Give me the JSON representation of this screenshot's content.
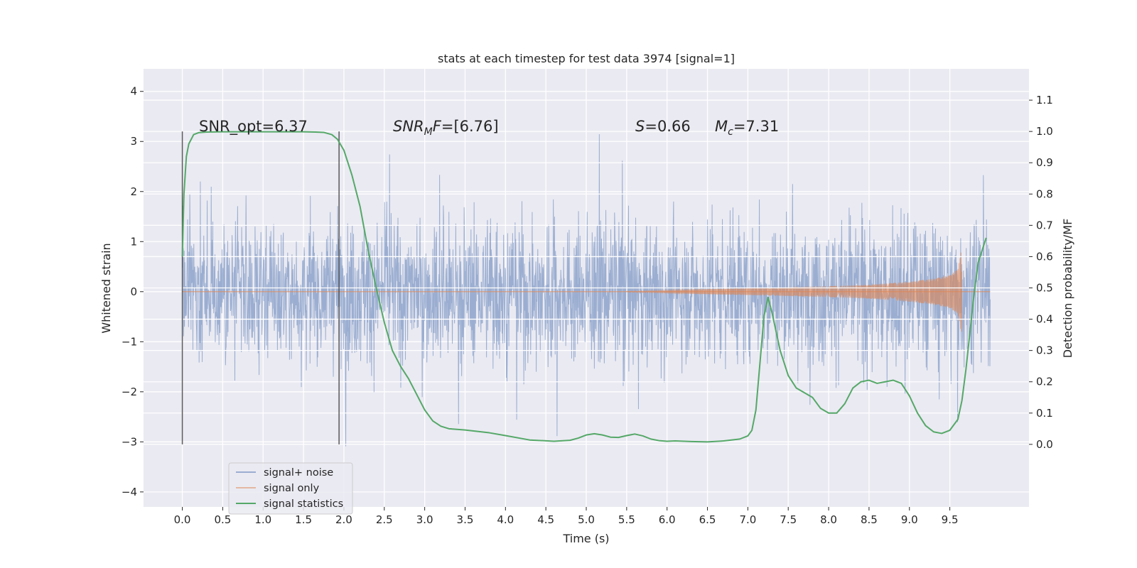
{
  "chart_data": {
    "type": "line",
    "title": "stats at each timestep for test data 3974 [signal=1]",
    "xlabel": "Time (s)",
    "ylabel_left": "Whitened strain",
    "ylabel_right": "Detection probability/MF",
    "xlim": [
      -0.48,
      10.48
    ],
    "ylim_left": [
      -4.3,
      4.45
    ],
    "ylim_right": [
      -0.2,
      1.2
    ],
    "x_ticks": [
      "0.0",
      "0.5",
      "1.0",
      "1.5",
      "2.0",
      "2.5",
      "3.0",
      "3.5",
      "4.0",
      "4.5",
      "5.0",
      "5.5",
      "6.0",
      "6.5",
      "7.0",
      "7.5",
      "8.0",
      "8.5",
      "9.0",
      "9.5"
    ],
    "y_ticks_left": [
      "−4",
      "−3",
      "−2",
      "−1",
      "0",
      "1",
      "2",
      "3",
      "4"
    ],
    "y_ticks_right": [
      "0.0",
      "0.1",
      "0.2",
      "0.3",
      "0.4",
      "0.5",
      "0.6",
      "0.7",
      "0.8",
      "0.9",
      "1.0",
      "1.1"
    ],
    "grid": true,
    "legend": {
      "placement": "lower-left",
      "entries": [
        "signal+ noise",
        "signal only",
        "signal statistics"
      ]
    },
    "annotations": {
      "snr_opt": "SNR_opt=6.37",
      "snr_mf": "[6.76]",
      "s_value": "=0.66",
      "mc_value": "=7.31"
    },
    "vertical_markers_x": [
      0.0,
      1.94
    ],
    "series": [
      {
        "name": "signal+ noise",
        "color": "#4c72b0",
        "axis": "left",
        "x_range": [
          0.0,
          10.0
        ],
        "envelope_y": [
          -4.0,
          4.05
        ]
      },
      {
        "name": "signal only",
        "color": "#dd8452",
        "axis": "left",
        "x": [
          5.5,
          6.0,
          6.5,
          7.0,
          7.5,
          8.0,
          8.5,
          9.0,
          9.3,
          9.5,
          9.6,
          9.65
        ],
        "amplitude": [
          0.01,
          0.03,
          0.05,
          0.07,
          0.09,
          0.11,
          0.14,
          0.2,
          0.26,
          0.33,
          0.45,
          0.9
        ]
      },
      {
        "name": "signal statistics",
        "color": "#55a868",
        "axis": "right",
        "x": [
          0.0,
          0.02,
          0.05,
          0.08,
          0.14,
          0.2,
          0.3,
          0.5,
          0.8,
          1.0,
          1.3,
          1.5,
          1.65,
          1.75,
          1.85,
          1.92,
          2.0,
          2.1,
          2.2,
          2.3,
          2.4,
          2.5,
          2.6,
          2.7,
          2.8,
          2.9,
          3.0,
          3.1,
          3.2,
          3.3,
          3.5,
          3.8,
          4.0,
          4.3,
          4.6,
          4.8,
          4.9,
          5.0,
          5.1,
          5.2,
          5.3,
          5.4,
          5.5,
          5.6,
          5.7,
          5.8,
          5.9,
          6.0,
          6.1,
          6.3,
          6.5,
          6.7,
          6.9,
          7.0,
          7.05,
          7.1,
          7.15,
          7.2,
          7.25,
          7.3,
          7.4,
          7.5,
          7.6,
          7.7,
          7.8,
          7.9,
          8.0,
          8.1,
          8.2,
          8.3,
          8.4,
          8.5,
          8.6,
          8.7,
          8.8,
          8.9,
          9.0,
          9.1,
          9.2,
          9.3,
          9.4,
          9.5,
          9.6,
          9.65,
          9.7,
          9.75,
          9.8,
          9.85,
          9.9,
          9.95
        ],
        "values": [
          0.6,
          0.8,
          0.92,
          0.96,
          0.99,
          0.996,
          0.998,
          0.999,
          0.999,
          0.999,
          0.999,
          0.999,
          0.998,
          0.997,
          0.99,
          0.975,
          0.94,
          0.86,
          0.76,
          0.62,
          0.5,
          0.39,
          0.3,
          0.25,
          0.21,
          0.16,
          0.11,
          0.075,
          0.058,
          0.05,
          0.046,
          0.037,
          0.028,
          0.014,
          0.01,
          0.013,
          0.02,
          0.03,
          0.034,
          0.03,
          0.023,
          0.022,
          0.028,
          0.033,
          0.027,
          0.017,
          0.012,
          0.01,
          0.011,
          0.009,
          0.008,
          0.011,
          0.017,
          0.027,
          0.045,
          0.11,
          0.26,
          0.41,
          0.47,
          0.42,
          0.3,
          0.22,
          0.18,
          0.165,
          0.15,
          0.115,
          0.1,
          0.1,
          0.13,
          0.18,
          0.2,
          0.205,
          0.195,
          0.2,
          0.205,
          0.195,
          0.155,
          0.1,
          0.06,
          0.04,
          0.035,
          0.045,
          0.08,
          0.14,
          0.24,
          0.36,
          0.48,
          0.58,
          0.62,
          0.66
        ]
      }
    ]
  }
}
